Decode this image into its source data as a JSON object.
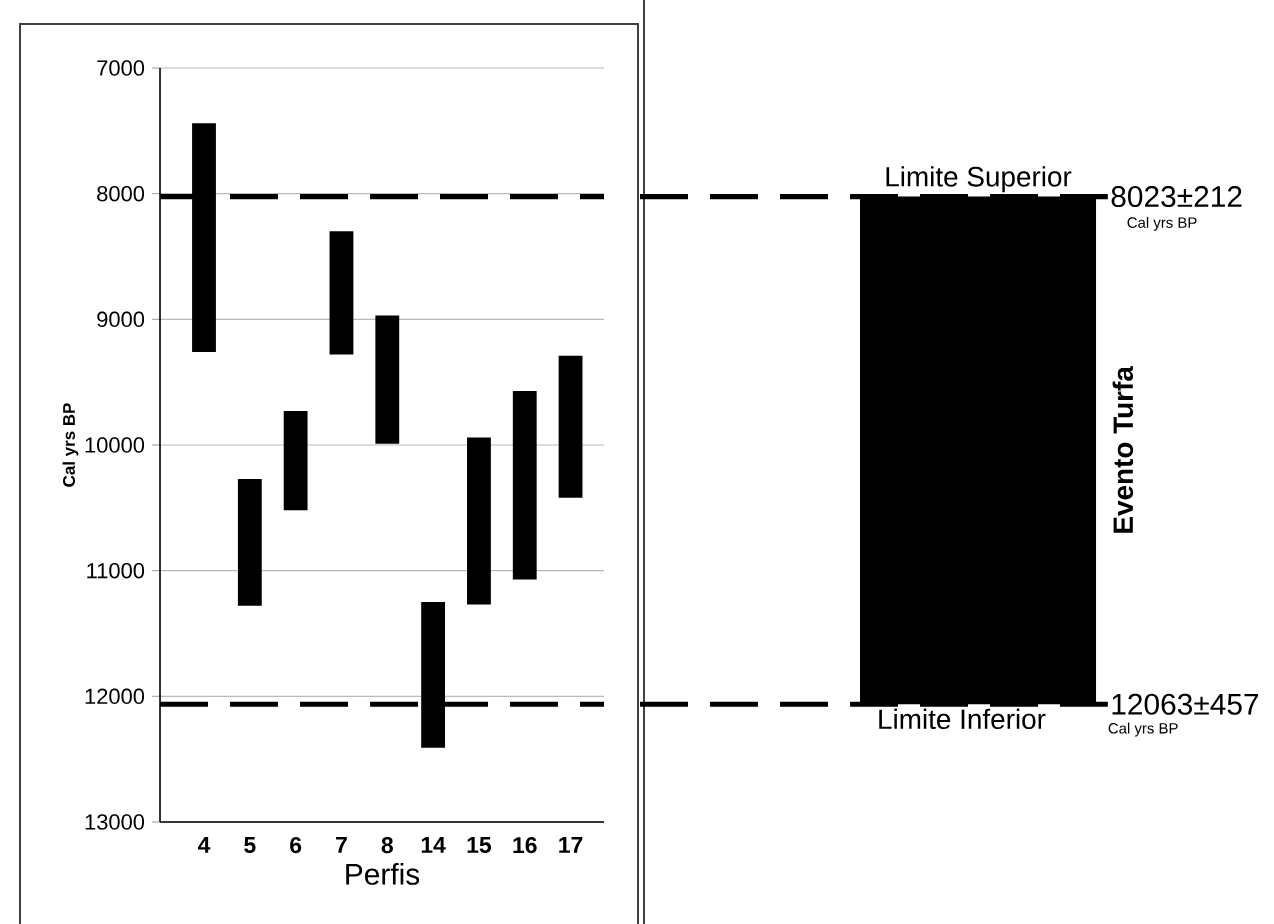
{
  "chart_data": [
    {
      "type": "bar",
      "categories": [
        "4",
        "5",
        "6",
        "7",
        "8",
        "14",
        "15",
        "16",
        "17"
      ],
      "base": [
        7440,
        10270,
        9730,
        8300,
        8970,
        11250,
        9940,
        9570,
        9290
      ],
      "values": [
        1820,
        1010,
        790,
        980,
        1020,
        1160,
        1330,
        1500,
        1130
      ],
      "color": "#000000",
      "ylim": [
        13000,
        7000
      ],
      "yticks": [
        7000,
        8000,
        9000,
        10000,
        11000,
        12000,
        13000
      ],
      "xlabel": "Perfis",
      "ylabel": "Cal yrs BP",
      "grid": "y",
      "ref_lines": [
        {
          "axis": "y",
          "value": 8023,
          "color": "#000000",
          "line_style": "dashed"
        },
        {
          "axis": "y",
          "value": 12063,
          "color": "#000000",
          "line_style": "dashed"
        }
      ]
    },
    {
      "type": "bar",
      "categories": [
        null
      ],
      "base": [
        8023
      ],
      "values": [
        4040
      ],
      "color": "#000000",
      "ylim": [
        13000,
        7000
      ],
      "tick_labels": false,
      "ref_lines": [
        {
          "axis": "y",
          "value": 8023,
          "label": "8023±212",
          "color": "#000000",
          "line_style": "dashed"
        },
        {
          "axis": "y",
          "value": 12063,
          "label": "12063±457",
          "color": "#000000",
          "line_style": "dashed"
        }
      ],
      "annotations": [
        {
          "text": "Limite Superior",
          "y": 8023
        },
        "Cal yrs BP",
        {
          "text": "Limite Inferior",
          "y": 12063
        },
        "Cal yrs BP",
        "Evento Turfa"
      ]
    }
  ]
}
